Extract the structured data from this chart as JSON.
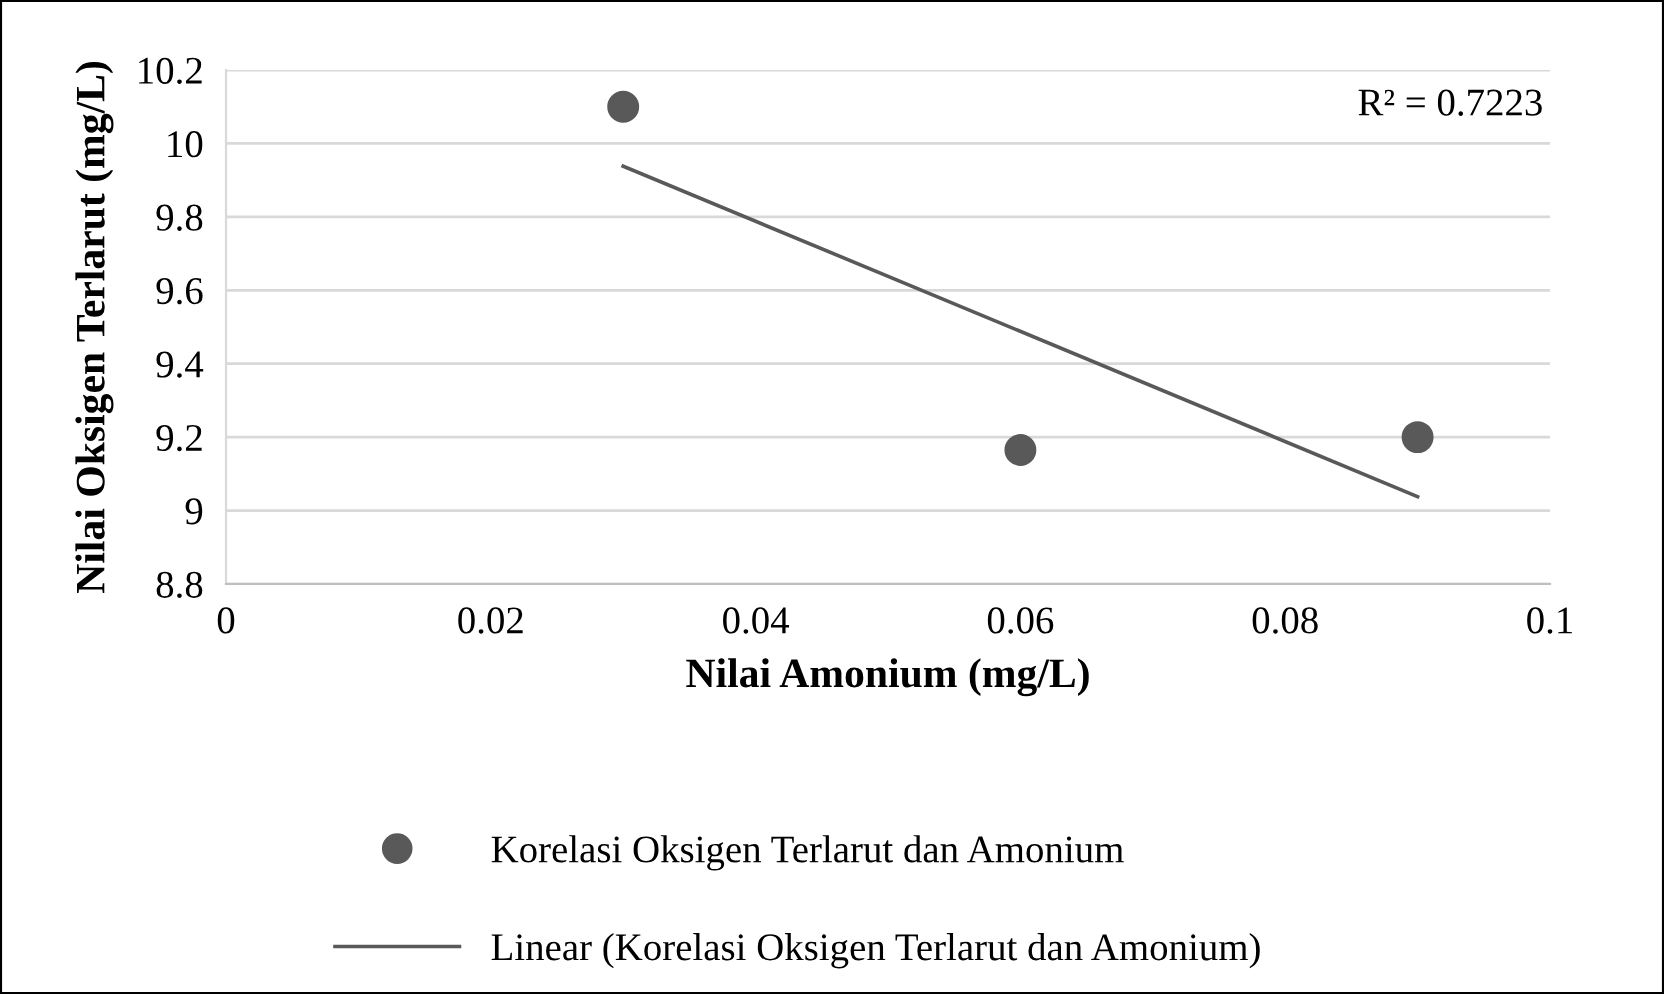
{
  "chart_data": {
    "type": "scatter",
    "xlabel": "Nilai Amonium (mg/L)",
    "ylabel": "Nilai Oksigen Terlarut (mg/L)",
    "x": [
      0.03,
      0.06,
      0.09
    ],
    "series": [
      {
        "name": "Korelasi Oksigen Terlarut dan Amonium",
        "color": "#595959",
        "values": [
          10.1,
          9.165,
          9.2
        ],
        "marker": "circle"
      },
      {
        "type": "line",
        "name": "Linear (Korelasi Oksigen Terlarut dan Amonium)",
        "color": "#595959",
        "x": [
          0.03,
          0.09
        ],
        "values": [
          9.938,
          9.038
        ],
        "marker": "none",
        "line_style": "solid"
      }
    ],
    "annotations": [
      "R² = 0.7223"
    ],
    "xlim": [
      0,
      0.1
    ],
    "xticks": [
      0,
      0.02,
      0.04,
      0.06,
      0.08,
      0.1
    ],
    "ylim": [
      8.8,
      10.2
    ],
    "yticks": [
      8.8,
      9,
      9.2,
      9.4,
      9.6,
      9.8,
      10,
      10.2
    ],
    "grid": "y",
    "legend": "bottom"
  }
}
